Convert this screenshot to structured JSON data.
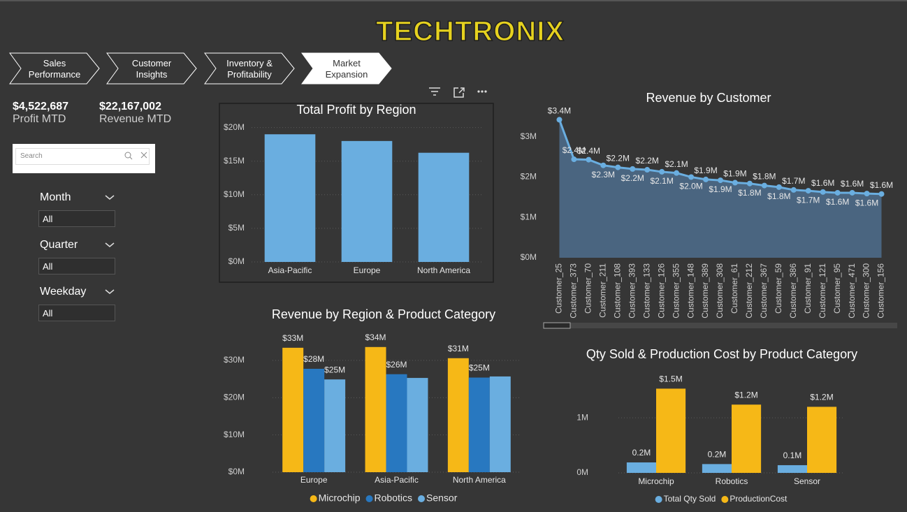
{
  "header": {
    "title": "TECHTRONIX"
  },
  "nav": {
    "tabs": [
      "Sales Performance",
      "Customer Insights",
      "Inventory & Profitability",
      "Market Expansion"
    ],
    "active_tab": 3
  },
  "kpis": [
    {
      "value": "$4,522,687",
      "label": "Profit MTD"
    },
    {
      "value": "$22,167,002",
      "label": "Revenue MTD"
    }
  ],
  "search": {
    "placeholder": "Search"
  },
  "filters": [
    {
      "label": "Month",
      "value": "All"
    },
    {
      "label": "Quarter",
      "value": "All"
    },
    {
      "label": "Weekday",
      "value": "All"
    }
  ],
  "chart_data": [
    {
      "type": "bar",
      "title": "Total Profit by Region",
      "categories": [
        "Asia-Pacific",
        "Europe",
        "North America"
      ],
      "values": [
        19000000,
        18000000,
        16250000
      ],
      "color": "#6aaee0",
      "ylim": [
        0,
        21000000
      ],
      "yticks": [
        {
          "value": 0,
          "label": "$0M"
        },
        {
          "value": 5000000,
          "label": "$5M"
        },
        {
          "value": 10000000,
          "label": "$10M"
        },
        {
          "value": 15000000,
          "label": "$15M"
        },
        {
          "value": 20000000,
          "label": "$20M"
        }
      ],
      "grid": true
    },
    {
      "type": "line",
      "title": "Revenue by Customer",
      "area": true,
      "color": "#6aaee0",
      "categories": [
        "Customer_25",
        "Customer_373",
        "Customer_70",
        "Customer_211",
        "Customer_108",
        "Customer_393",
        "Customer_133",
        "Customer_126",
        "Customer_355",
        "Customer_148",
        "Customer_389",
        "Customer_308",
        "Customer_61",
        "Customer_212",
        "Customer_367",
        "Customer_59",
        "Customer_386",
        "Customer_91",
        "Customer_121",
        "Customer_95",
        "Customer_471",
        "Customer_300",
        "Customer_156"
      ],
      "values": [
        3420000,
        2440000,
        2430000,
        2290000,
        2240000,
        2200000,
        2180000,
        2130000,
        2100000,
        2000000,
        1940000,
        1920000,
        1860000,
        1840000,
        1790000,
        1750000,
        1680000,
        1660000,
        1630000,
        1610000,
        1610000,
        1590000,
        1580000
      ],
      "value_labels": [
        "$3.4M",
        "$2.4M",
        "$2.4M",
        "$2.3M",
        "$2.2M",
        "$2.2M",
        "$2.2M",
        "$2.1M",
        "$2.1M",
        "$2.0M",
        "$1.9M",
        "$1.9M",
        "$1.9M",
        "$1.8M",
        "$1.8M",
        "$1.8M",
        "$1.7M",
        "$1.7M",
        "$1.6M",
        "$1.6M",
        "$1.6M",
        "$1.6M",
        "$1.6M"
      ],
      "ylim": [
        0,
        3600000
      ],
      "yticks": [
        {
          "value": 0,
          "label": "$0M"
        },
        {
          "value": 1000000,
          "label": "$1M"
        },
        {
          "value": 2000000,
          "label": "$2M"
        },
        {
          "value": 3000000,
          "label": "$3M"
        }
      ],
      "grid": false
    },
    {
      "type": "bar",
      "title": "Revenue by Region & Product Category",
      "categories": [
        "Europe",
        "Asia-Pacific",
        "North America"
      ],
      "series": [
        {
          "name": "Microchip",
          "color": "#f6b817",
          "values": [
            33400000,
            33600000,
            30600000
          ],
          "value_labels": [
            "$33M",
            "$34M",
            "$31M"
          ]
        },
        {
          "name": "Robotics",
          "color": "#2878c0",
          "values": [
            27750000,
            26300000,
            25400000
          ],
          "value_labels": [
            "$28M",
            "$26M",
            "$25M"
          ]
        },
        {
          "name": "Sensor",
          "color": "#6aaee0",
          "values": [
            24900000,
            25300000,
            25700000
          ],
          "value_labels": [
            "$25M",
            null,
            null
          ]
        }
      ],
      "ylim": [
        0,
        36000000
      ],
      "yticks": [
        {
          "value": 0,
          "label": "$0M"
        },
        {
          "value": 10000000,
          "label": "$10M"
        },
        {
          "value": 20000000,
          "label": "$20M"
        },
        {
          "value": 30000000,
          "label": "$30M"
        }
      ],
      "grid": true
    },
    {
      "type": "bar",
      "title": "Qty Sold & Production Cost by Product Category",
      "categories": [
        "Microchip",
        "Robotics",
        "Sensor"
      ],
      "series": [
        {
          "name": "Total Qty Sold",
          "color": "#6aaee0",
          "values": [
            190000,
            160000,
            140000
          ],
          "value_labels": [
            "0.2M",
            "0.2M",
            "0.1M"
          ]
        },
        {
          "name": "ProductionCost",
          "color": "#f6b817",
          "values": [
            1530000,
            1240000,
            1200000
          ],
          "value_labels": [
            "$1.5M",
            "$1.2M",
            "$1.2M"
          ]
        }
      ],
      "ylim": [
        0,
        1700000
      ],
      "yticks": [
        {
          "value": 0,
          "label": "0M"
        },
        {
          "value": 1000000,
          "label": "1M"
        }
      ],
      "grid": true
    }
  ]
}
